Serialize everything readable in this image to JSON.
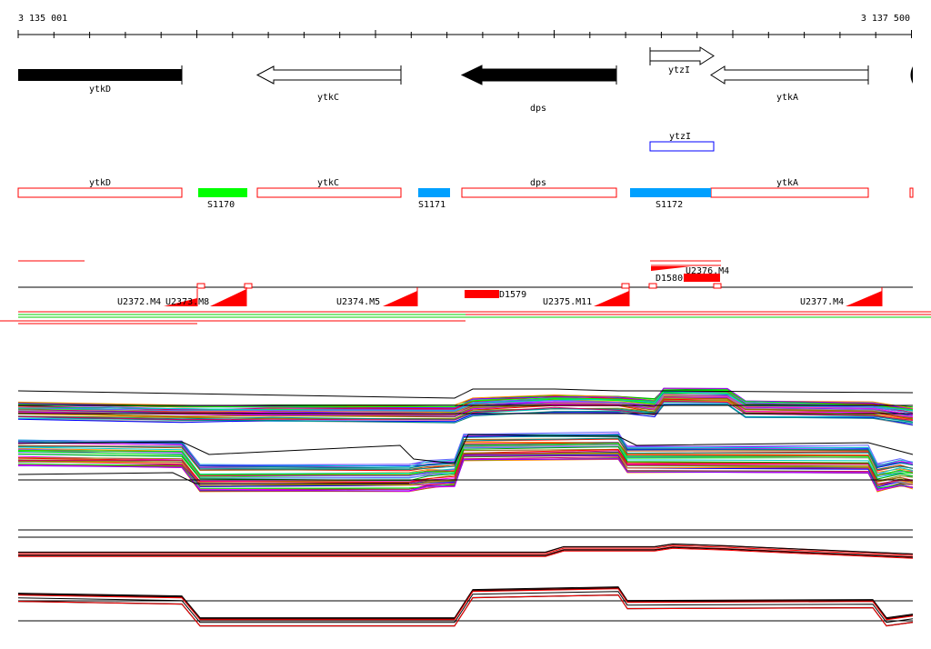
{
  "ruler": {
    "start_label": "3 135 001",
    "end_label": "3 137 500"
  },
  "colors": {
    "background": "#ffffff",
    "gene_fill_black": "#000000",
    "gene_outline_red": "#ff0000",
    "green_segment": "#00ff00",
    "blue_segment": "#00a0ff",
    "red_segment": "#ff0000",
    "box_blue": "#0000ff"
  },
  "genes": [
    {
      "name": "ytkD",
      "strand": "forward",
      "filled": true
    },
    {
      "name": "ytkC",
      "strand": "reverse",
      "filled": false
    },
    {
      "name": "dps",
      "strand": "reverse",
      "filled": true
    },
    {
      "name": "ytzI",
      "strand": "forward",
      "filled": false
    },
    {
      "name": "ytkA",
      "strand": "reverse",
      "filled": false
    }
  ],
  "blue_box_label": "ytzI",
  "gene_boxes": [
    {
      "name": "ytkD"
    },
    {
      "name": "ytkC"
    },
    {
      "name": "dps"
    },
    {
      "name": "ytkA"
    }
  ],
  "segments": [
    {
      "name": "S1170",
      "color": "#00ff00"
    },
    {
      "name": "S1171",
      "color": "#00a0ff"
    },
    {
      "name": "S1172",
      "color": "#00a0ff"
    }
  ],
  "units": [
    {
      "name": "U2372.M4"
    },
    {
      "name": "U2373.M8"
    },
    {
      "name": "U2374.M5"
    },
    {
      "name": "U2375.M11"
    },
    {
      "name": "U2377.M4"
    },
    {
      "name": "U2376.M4"
    }
  ],
  "down_labels": [
    {
      "name": "D1579"
    },
    {
      "name": "D1580"
    }
  ]
}
